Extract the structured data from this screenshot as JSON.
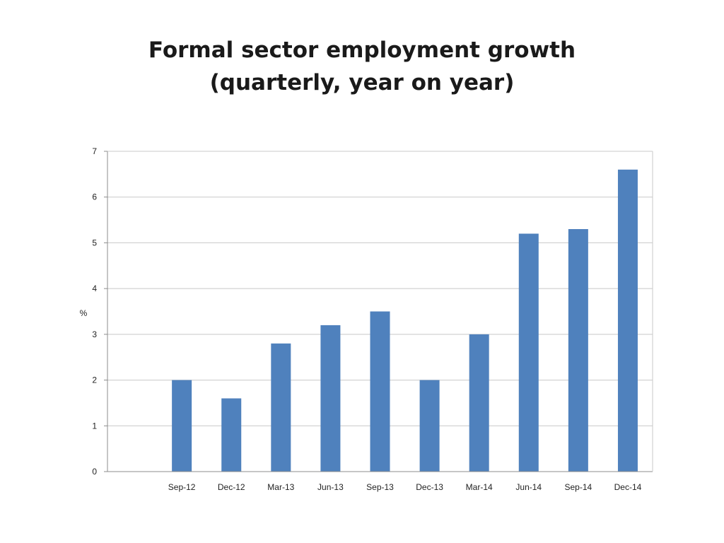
{
  "title": {
    "line1": "Formal sector employment growth",
    "line2": "(quarterly, year on year)"
  },
  "chart_data": {
    "type": "bar",
    "title": "Formal sector employment growth (quarterly, year on year)",
    "xlabel": "",
    "ylabel": "%",
    "categories": [
      "",
      "Sep-12",
      "Dec-12",
      "Mar-13",
      "Jun-13",
      "Sep-13",
      "Dec-13",
      "Mar-14",
      "Jun-14",
      "Sep-14",
      "Dec-14"
    ],
    "values": [
      null,
      2.0,
      1.6,
      2.8,
      3.2,
      3.5,
      2.0,
      3.0,
      5.2,
      5.3,
      6.6
    ],
    "ylim": [
      0,
      7
    ],
    "yticks": [
      0,
      1,
      2,
      3,
      4,
      5,
      6,
      7
    ],
    "grid": true,
    "legend": "none",
    "bar_color": "#4f81bd",
    "grid_color": "#c8c8c8",
    "axis_color": "#8c8c8c"
  }
}
